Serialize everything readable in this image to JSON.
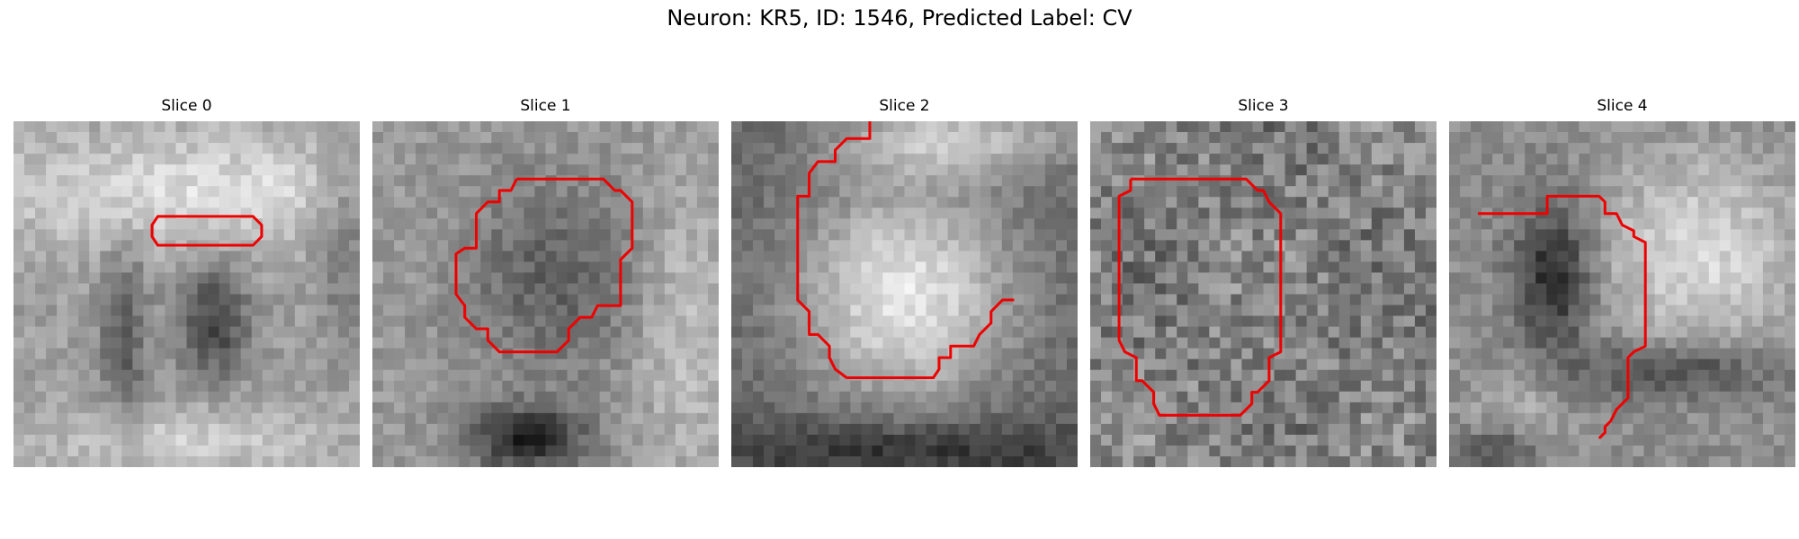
{
  "figure": {
    "title": "Neuron: KR5, ID: 1546, Predicted Label: CV"
  },
  "panels": [
    {
      "title": "Slice 0",
      "contour": [
        [
          6.5,
          3.3
        ],
        [
          8.3,
          3.3
        ],
        [
          8.6,
          3.6
        ],
        [
          8.6,
          4.0
        ],
        [
          8.3,
          4.3
        ],
        [
          5.0,
          4.3
        ],
        [
          4.8,
          4.0
        ],
        [
          4.8,
          3.6
        ],
        [
          5.0,
          3.3
        ]
      ]
    },
    {
      "title": "Slice 1",
      "contour": [
        [
          5.0,
          2.0
        ],
        [
          8.0,
          2.0
        ],
        [
          8.4,
          2.4
        ],
        [
          8.6,
          2.4
        ],
        [
          9.0,
          2.8
        ],
        [
          9.0,
          4.4
        ],
        [
          8.6,
          4.8
        ],
        [
          8.6,
          6.4
        ],
        [
          7.8,
          6.4
        ],
        [
          7.6,
          6.8
        ],
        [
          7.2,
          6.8
        ],
        [
          6.8,
          7.2
        ],
        [
          6.8,
          7.6
        ],
        [
          6.4,
          8.0
        ],
        [
          4.4,
          8.0
        ],
        [
          4.0,
          7.6
        ],
        [
          4.0,
          7.2
        ],
        [
          3.6,
          7.2
        ],
        [
          3.2,
          6.8
        ],
        [
          3.2,
          6.4
        ],
        [
          2.9,
          6.0
        ],
        [
          2.9,
          4.6
        ],
        [
          3.2,
          4.4
        ],
        [
          3.6,
          4.4
        ],
        [
          3.6,
          3.2
        ],
        [
          4.0,
          2.8
        ],
        [
          4.4,
          2.8
        ],
        [
          4.4,
          2.4
        ],
        [
          4.8,
          2.4
        ]
      ]
    },
    {
      "title": "Slice 2",
      "contour": [
        [
          4.8,
          0
        ],
        [
          4.8,
          0.6
        ],
        [
          4.0,
          0.6
        ],
        [
          3.6,
          1.0
        ],
        [
          3.6,
          1.4
        ],
        [
          3.0,
          1.4
        ],
        [
          2.7,
          1.8
        ],
        [
          2.7,
          2.6
        ],
        [
          2.3,
          2.6
        ],
        [
          2.3,
          6.2
        ],
        [
          2.7,
          6.6
        ],
        [
          2.7,
          7.4
        ],
        [
          3.0,
          7.4
        ],
        [
          3.4,
          7.8
        ],
        [
          3.4,
          8.2
        ],
        [
          3.6,
          8.6
        ],
        [
          4.0,
          8.9
        ],
        [
          7.0,
          8.9
        ],
        [
          7.2,
          8.6
        ],
        [
          7.2,
          8.2
        ],
        [
          7.6,
          8.2
        ],
        [
          7.6,
          7.8
        ],
        [
          8.4,
          7.8
        ],
        [
          8.6,
          7.4
        ],
        [
          9.0,
          7.0
        ],
        [
          9.0,
          6.6
        ],
        [
          9.4,
          6.2
        ],
        [
          9.8,
          6.2
        ]
      ]
    },
    {
      "title": "Slice 3",
      "contour": [
        [
          1.4,
          2.0
        ],
        [
          5.4,
          2.0
        ],
        [
          5.8,
          2.4
        ],
        [
          6.0,
          2.4
        ],
        [
          6.2,
          2.8
        ],
        [
          6.6,
          3.2
        ],
        [
          6.6,
          8.0
        ],
        [
          6.2,
          8.2
        ],
        [
          6.2,
          9.0
        ],
        [
          5.8,
          9.4
        ],
        [
          5.6,
          9.4
        ],
        [
          5.6,
          9.8
        ],
        [
          5.2,
          10.2
        ],
        [
          2.4,
          10.2
        ],
        [
          2.2,
          9.8
        ],
        [
          2.2,
          9.4
        ],
        [
          1.8,
          9.0
        ],
        [
          1.6,
          9.0
        ],
        [
          1.6,
          8.2
        ],
        [
          1.2,
          8.0
        ],
        [
          1.0,
          7.6
        ],
        [
          1.0,
          2.8
        ],
        [
          1.0,
          2.6
        ],
        [
          1.4,
          2.4
        ]
      ]
    },
    {
      "title": "Slice 4",
      "contour": [
        [
          1.0,
          3.2
        ],
        [
          3.4,
          3.2
        ],
        [
          3.4,
          2.6
        ],
        [
          5.2,
          2.6
        ],
        [
          5.4,
          2.8
        ],
        [
          5.4,
          3.2
        ],
        [
          5.8,
          3.2
        ],
        [
          6.0,
          3.6
        ],
        [
          6.4,
          3.8
        ],
        [
          6.4,
          4.0
        ],
        [
          6.8,
          4.2
        ],
        [
          6.8,
          7.8
        ],
        [
          6.4,
          8.0
        ],
        [
          6.2,
          8.2
        ],
        [
          6.2,
          9.6
        ],
        [
          6.0,
          9.8
        ],
        [
          5.8,
          10.0
        ],
        [
          5.6,
          10.4
        ],
        [
          5.4,
          10.6
        ],
        [
          5.4,
          10.8
        ],
        [
          5.2,
          11.0
        ]
      ]
    }
  ]
}
